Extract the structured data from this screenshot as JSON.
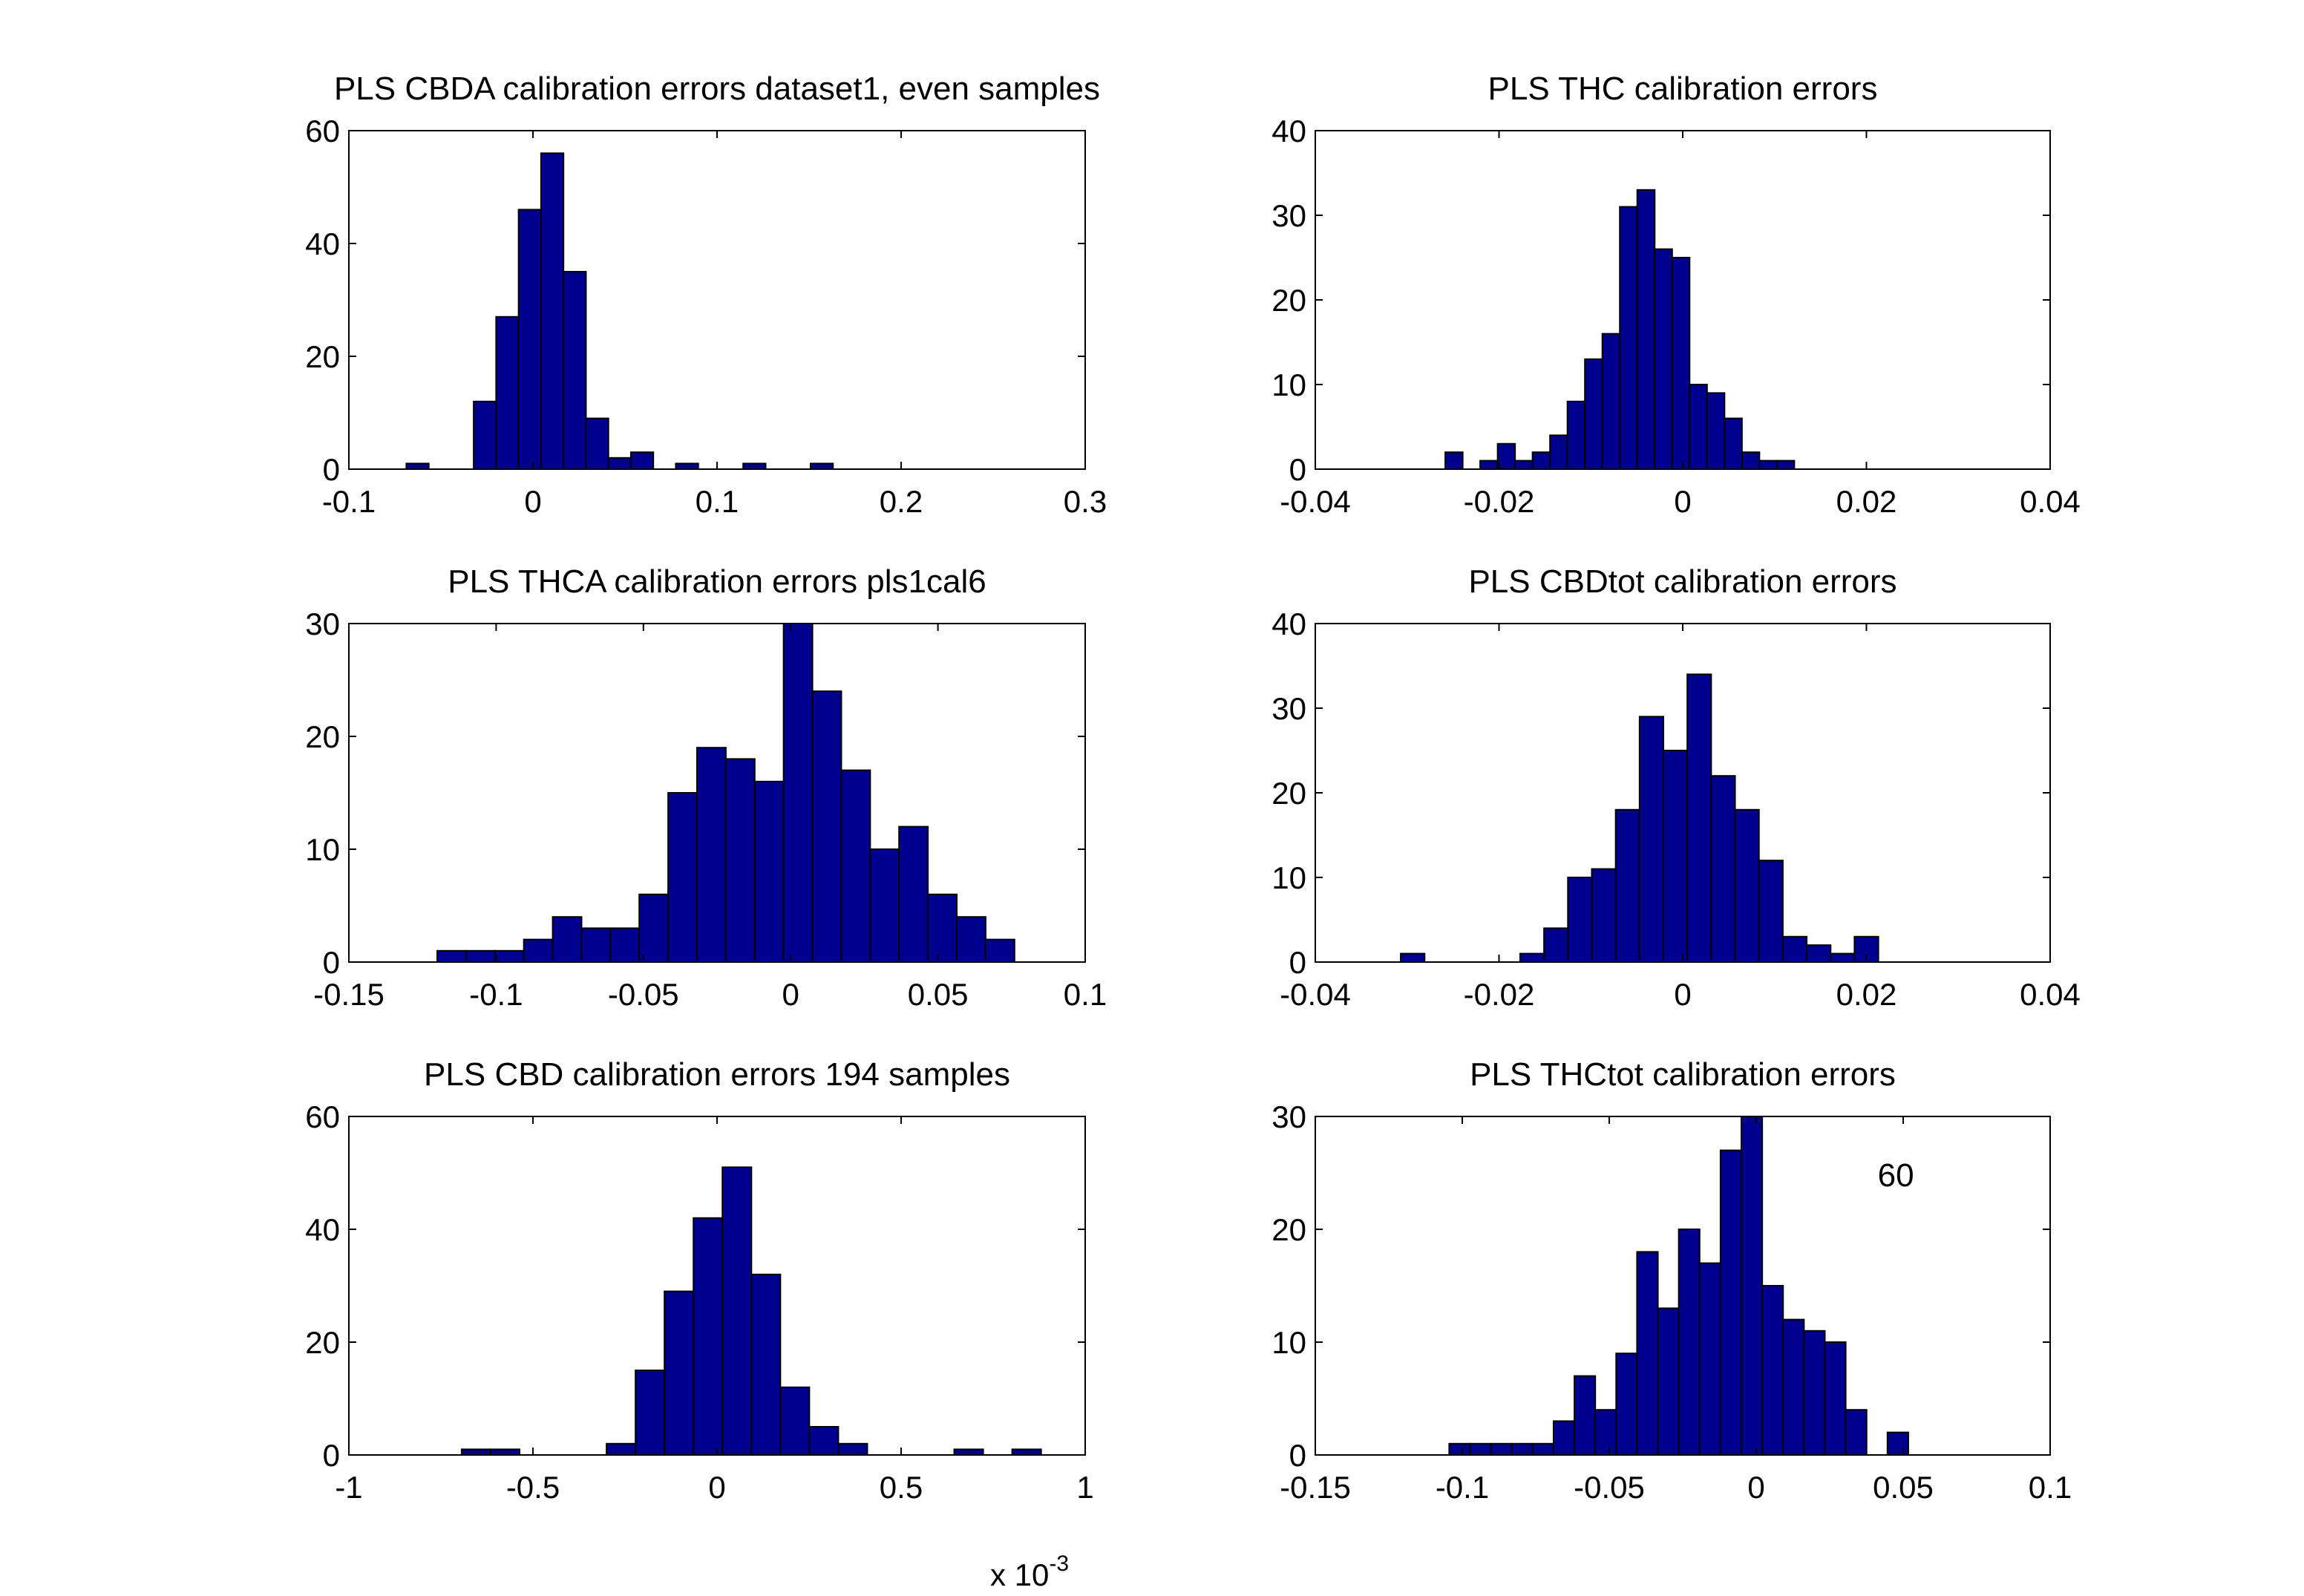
{
  "chart_data": [
    {
      "type": "bar",
      "title": "PLS CBDA calibration errors dataset1, even samples",
      "xlim": [
        -0.1,
        0.3
      ],
      "ylim": [
        0,
        60
      ],
      "xticks": [
        -0.1,
        0,
        0.1,
        0.2,
        0.3
      ],
      "xtick_labels": [
        "-0.1",
        "0",
        "0.1",
        "0.2",
        "0.3"
      ],
      "yticks": [
        0,
        20,
        40,
        60
      ],
      "ytick_labels": [
        "0",
        "20",
        "40",
        "60"
      ],
      "bin_width": 0.0122,
      "bins": [
        {
          "x": -0.0627,
          "y": 1
        },
        {
          "x": -0.0261,
          "y": 12
        },
        {
          "x": -0.0139,
          "y": 27
        },
        {
          "x": -0.0017,
          "y": 46
        },
        {
          "x": 0.0105,
          "y": 56
        },
        {
          "x": 0.0227,
          "y": 35
        },
        {
          "x": 0.0349,
          "y": 9
        },
        {
          "x": 0.0471,
          "y": 2
        },
        {
          "x": 0.0593,
          "y": 3
        },
        {
          "x": 0.0837,
          "y": 1
        },
        {
          "x": 0.1203,
          "y": 1
        },
        {
          "x": 0.1569,
          "y": 1
        }
      ]
    },
    {
      "type": "bar",
      "title": "PLS THC calibration errors",
      "xlim": [
        -0.04,
        0.04
      ],
      "ylim": [
        0,
        40
      ],
      "xticks": [
        -0.04,
        -0.02,
        0,
        0.02,
        0.04
      ],
      "xtick_labels": [
        "-0.04",
        "-0.02",
        "0",
        "0.02",
        "0.04"
      ],
      "yticks": [
        0,
        10,
        20,
        30,
        40
      ],
      "ytick_labels": [
        "0",
        "10",
        "20",
        "30",
        "40"
      ],
      "bin_width": 0.0019,
      "bins": [
        {
          "x": -0.0249,
          "y": 2
        },
        {
          "x": -0.0211,
          "y": 1
        },
        {
          "x": -0.0192,
          "y": 3
        },
        {
          "x": -0.0173,
          "y": 1
        },
        {
          "x": -0.0154,
          "y": 2
        },
        {
          "x": -0.0135,
          "y": 4
        },
        {
          "x": -0.0116,
          "y": 8
        },
        {
          "x": -0.0097,
          "y": 13
        },
        {
          "x": -0.0078,
          "y": 16
        },
        {
          "x": -0.0059,
          "y": 31
        },
        {
          "x": -0.004,
          "y": 33
        },
        {
          "x": -0.0021,
          "y": 26
        },
        {
          "x": -0.0002,
          "y": 25
        },
        {
          "x": 0.0017,
          "y": 10
        },
        {
          "x": 0.0036,
          "y": 9
        },
        {
          "x": 0.0055,
          "y": 6
        },
        {
          "x": 0.0074,
          "y": 2
        },
        {
          "x": 0.0093,
          "y": 1
        },
        {
          "x": 0.0112,
          "y": 1
        }
      ]
    },
    {
      "type": "bar",
      "title": "PLS THCA calibration errors pls1cal6",
      "xlim": [
        -0.15,
        0.1
      ],
      "ylim": [
        0,
        30
      ],
      "xticks": [
        -0.15,
        -0.1,
        -0.05,
        0,
        0.05,
        0.1
      ],
      "xtick_labels": [
        "-0.15",
        "-0.1",
        "-0.05",
        "0",
        "0.05",
        "0.1"
      ],
      "yticks": [
        0,
        10,
        20,
        30
      ],
      "ytick_labels": [
        "0",
        "10",
        "20",
        "30"
      ],
      "bin_width": 0.0098,
      "bins": [
        {
          "x": -0.1151,
          "y": 1
        },
        {
          "x": -0.1053,
          "y": 1
        },
        {
          "x": -0.0955,
          "y": 1
        },
        {
          "x": -0.0857,
          "y": 2
        },
        {
          "x": -0.0759,
          "y": 4
        },
        {
          "x": -0.0661,
          "y": 3
        },
        {
          "x": -0.0563,
          "y": 3
        },
        {
          "x": -0.0465,
          "y": 6
        },
        {
          "x": -0.0367,
          "y": 15
        },
        {
          "x": -0.0269,
          "y": 19
        },
        {
          "x": -0.0171,
          "y": 18
        },
        {
          "x": -0.0073,
          "y": 16
        },
        {
          "x": 0.0025,
          "y": 31
        },
        {
          "x": 0.0123,
          "y": 24
        },
        {
          "x": 0.0221,
          "y": 17
        },
        {
          "x": 0.0319,
          "y": 10
        },
        {
          "x": 0.0417,
          "y": 12
        },
        {
          "x": 0.0515,
          "y": 6
        },
        {
          "x": 0.0613,
          "y": 4
        },
        {
          "x": 0.0711,
          "y": 2
        }
      ]
    },
    {
      "type": "bar",
      "title": "PLS CBDtot calibration errors",
      "xlim": [
        -0.04,
        0.04
      ],
      "ylim": [
        0,
        40
      ],
      "xticks": [
        -0.04,
        -0.02,
        0,
        0.02,
        0.04
      ],
      "xtick_labels": [
        "-0.04",
        "-0.02",
        "0",
        "0.02",
        "0.04"
      ],
      "yticks": [
        0,
        10,
        20,
        30,
        40
      ],
      "ytick_labels": [
        "0",
        "10",
        "20",
        "30",
        "40"
      ],
      "bin_width": 0.0026,
      "bins": [
        {
          "x": -0.0294,
          "y": 1
        },
        {
          "x": -0.0164,
          "y": 1
        },
        {
          "x": -0.0138,
          "y": 4
        },
        {
          "x": -0.0112,
          "y": 10
        },
        {
          "x": -0.0086,
          "y": 11
        },
        {
          "x": -0.006,
          "y": 18
        },
        {
          "x": -0.0034,
          "y": 29
        },
        {
          "x": -0.0008,
          "y": 25
        },
        {
          "x": 0.0018,
          "y": 34
        },
        {
          "x": 0.0044,
          "y": 22
        },
        {
          "x": 0.007,
          "y": 18
        },
        {
          "x": 0.0096,
          "y": 12
        },
        {
          "x": 0.0122,
          "y": 3
        },
        {
          "x": 0.0148,
          "y": 2
        },
        {
          "x": 0.0174,
          "y": 1
        },
        {
          "x": 0.02,
          "y": 3
        }
      ]
    },
    {
      "type": "bar",
      "title": "PLS CBD calibration errors 194 samples",
      "xlim": [
        -1,
        1
      ],
      "ylim": [
        0,
        60
      ],
      "xticks": [
        -1,
        -0.5,
        0,
        0.5,
        1
      ],
      "xtick_labels": [
        "-1",
        "-0.5",
        "0",
        "0.5",
        "1"
      ],
      "yticks": [
        0,
        20,
        40,
        60
      ],
      "ytick_labels": [
        "0",
        "20",
        "40",
        "60"
      ],
      "x_multiplier": {
        "base": "x 10",
        "exponent": "-3"
      },
      "bin_width": 0.0787,
      "bins": [
        {
          "x": -0.6543,
          "y": 1
        },
        {
          "x": -0.5756,
          "y": 1
        },
        {
          "x": -0.2608,
          "y": 2
        },
        {
          "x": -0.1821,
          "y": 15
        },
        {
          "x": -0.1034,
          "y": 29
        },
        {
          "x": -0.0247,
          "y": 42
        },
        {
          "x": 0.054,
          "y": 51
        },
        {
          "x": 0.1327,
          "y": 32
        },
        {
          "x": 0.2114,
          "y": 12
        },
        {
          "x": 0.2901,
          "y": 5
        },
        {
          "x": 0.3688,
          "y": 2
        },
        {
          "x": 0.6836,
          "y": 1
        },
        {
          "x": 0.841,
          "y": 1
        }
      ]
    },
    {
      "type": "bar",
      "title": "PLS THCtot calibration errors",
      "xlim": [
        -0.15,
        0.1
      ],
      "ylim": [
        0,
        30
      ],
      "xticks": [
        -0.15,
        -0.1,
        -0.05,
        0,
        0.05,
        0.1
      ],
      "xtick_labels": [
        "-0.15",
        "-0.1",
        "-0.05",
        "0",
        "0.05",
        "0.1"
      ],
      "yticks": [
        0,
        10,
        20,
        30
      ],
      "ytick_labels": [
        "0",
        "10",
        "20",
        "30"
      ],
      "annotation": "60",
      "bin_width": 0.0071,
      "bins": [
        {
          "x": -0.1009,
          "y": 1
        },
        {
          "x": -0.0938,
          "y": 1
        },
        {
          "x": -0.0867,
          "y": 1
        },
        {
          "x": -0.0796,
          "y": 1
        },
        {
          "x": -0.0725,
          "y": 1
        },
        {
          "x": -0.0654,
          "y": 3
        },
        {
          "x": -0.0583,
          "y": 7
        },
        {
          "x": -0.0512,
          "y": 4
        },
        {
          "x": -0.0441,
          "y": 9
        },
        {
          "x": -0.037,
          "y": 18
        },
        {
          "x": -0.0299,
          "y": 13
        },
        {
          "x": -0.0228,
          "y": 20
        },
        {
          "x": -0.0157,
          "y": 17
        },
        {
          "x": -0.0086,
          "y": 27
        },
        {
          "x": -0.0015,
          "y": 31
        },
        {
          "x": 0.0056,
          "y": 15
        },
        {
          "x": 0.0127,
          "y": 12
        },
        {
          "x": 0.0198,
          "y": 11
        },
        {
          "x": 0.0269,
          "y": 10
        },
        {
          "x": 0.034,
          "y": 4
        },
        {
          "x": 0.0482,
          "y": 2
        }
      ]
    }
  ],
  "colors": {
    "bar_fill": "#00008f",
    "bar_edge": "#000000",
    "axes": "#000000",
    "background": "#ffffff"
  }
}
